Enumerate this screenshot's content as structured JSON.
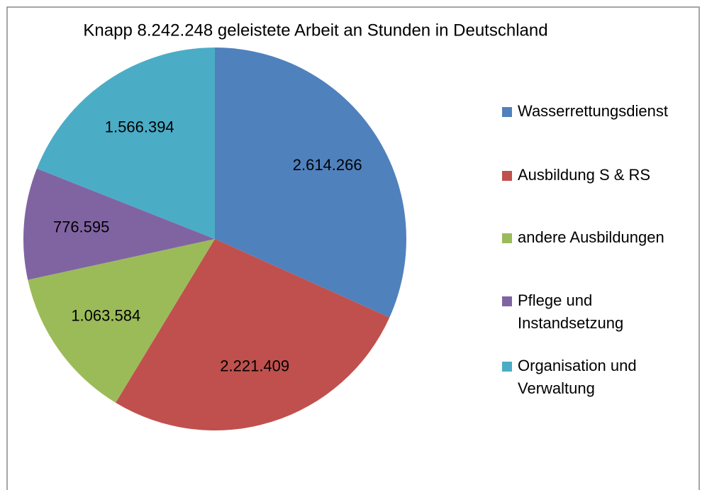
{
  "chart_data": {
    "type": "pie",
    "title": "Knapp 8.242.248 geleistete Arbeit an Stunden in Deutschland",
    "categories": [
      "Wasserrettungsdienst",
      "Ausbildung  S & RS",
      "andere Ausbildungen",
      "Pflege und Instandsetzung",
      "Organisation und Verwaltung"
    ],
    "values": [
      2614266,
      2221409,
      1063584,
      776595,
      1566394
    ],
    "value_labels": [
      "2.614.266",
      "2.221.409",
      "1.063.584",
      "776.595",
      "1.566.394"
    ],
    "colors": [
      "#4f81bd",
      "#c0504d",
      "#9bbb59",
      "#8064a2",
      "#4bacc6"
    ],
    "legend": "right"
  }
}
